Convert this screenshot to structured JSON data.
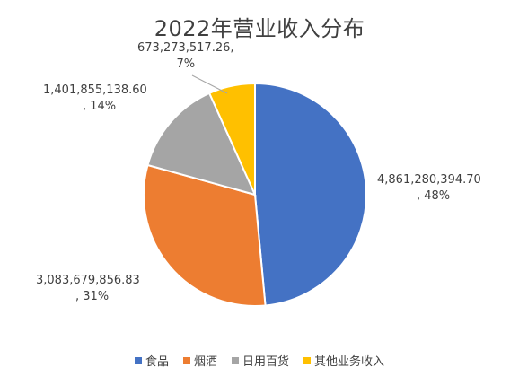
{
  "chart_data": {
    "type": "pie",
    "title": "2022年营业收入分布",
    "categories": [
      "食品",
      "烟酒",
      "日用百货",
      "其他业务收入"
    ],
    "values": [
      4861280394.7,
      3083679856.83,
      1401855138.6,
      673273517.26
    ],
    "percents": [
      "48%",
      "31%",
      "14%",
      "7%"
    ],
    "value_labels": [
      "4,861,280,394.70",
      "3,083,679,856.83",
      "1,401,855,138.60",
      "673,273,517.26"
    ],
    "colors": [
      "#4472C4",
      "#ED7D31",
      "#A5A5A5",
      "#FFC000"
    ],
    "legend_position": "bottom"
  }
}
